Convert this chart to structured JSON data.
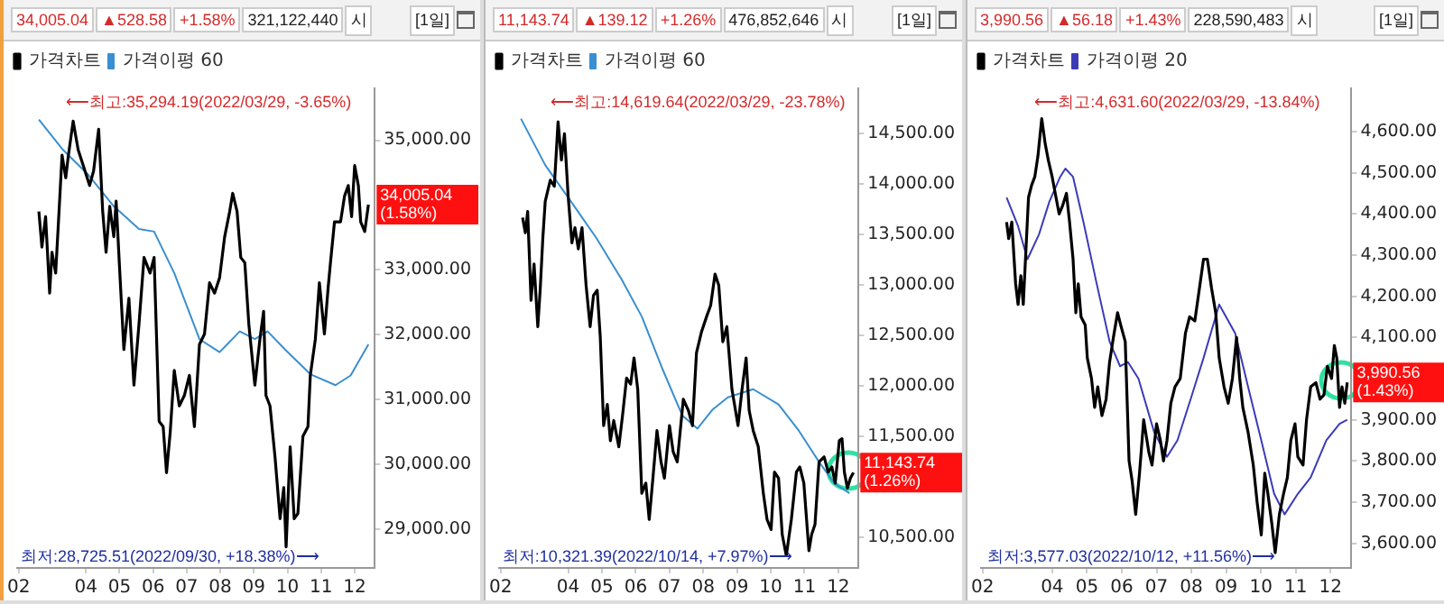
{
  "chart_data": [
    {
      "type": "line",
      "legend": "top left",
      "marker": "none",
      "grid": false,
      "annotations": [
        "34,005.04",
        "▲528.58",
        "+1.58%",
        "321,122,440",
        "시",
        "[1일]",
        {
          "text": "⟵최고:35,294.19(2022/03/29, -3.65%)",
          "x": 3.62,
          "y": 35294.19
        },
        {
          "text": "최저:28,725.51(2022/09/30, +18.38%)⟶",
          "x": 9.96,
          "y": 28725.51
        },
        {
          "text": "34,005.04\n(1.58%)",
          "x": 12.41,
          "y": 34005.04
        }
      ],
      "xlim": [
        1.95,
        12.6
      ],
      "xticks": [
        {
          "value": 2,
          "label": "02"
        },
        {
          "value": 4,
          "label": "04"
        },
        {
          "value": 5,
          "label": "05"
        },
        {
          "value": 6,
          "label": "06"
        },
        {
          "value": 7,
          "label": "07"
        },
        {
          "value": 8,
          "label": "08"
        },
        {
          "value": 9,
          "label": "09"
        },
        {
          "value": 10,
          "label": "10"
        },
        {
          "value": 11,
          "label": "11"
        },
        {
          "value": 12,
          "label": "12"
        }
      ],
      "ylim": [
        28400,
        35800
      ],
      "yticks": [
        {
          "value": 29000,
          "label": "29,000.00"
        },
        {
          "value": 30000,
          "label": "30,000.00"
        },
        {
          "value": 31000,
          "label": "31,000.00"
        },
        {
          "value": 32000,
          "label": "32,000.00"
        },
        {
          "value": 33000,
          "label": "33,000.00"
        },
        {
          "value": 35000,
          "label": "35,000.00"
        }
      ],
      "series": [
        {
          "name": "가격차트",
          "color": "#000000",
          "x": [
            2.6,
            2.69,
            2.8,
            2.92,
            2.99,
            3.1,
            3.2,
            3.29,
            3.4,
            3.47,
            3.62,
            3.77,
            3.92,
            4.11,
            4.23,
            4.38,
            4.5,
            4.6,
            4.71,
            4.83,
            4.9,
            5.01,
            5.13,
            5.28,
            5.43,
            5.58,
            5.73,
            5.91,
            6.03,
            6.18,
            6.3,
            6.4,
            6.51,
            6.63,
            6.78,
            6.93,
            7.08,
            7.23,
            7.38,
            7.53,
            7.68,
            7.83,
            7.98,
            8.13,
            8.28,
            8.37,
            8.5,
            8.61,
            8.73,
            8.85,
            9.03,
            9.18,
            9.29,
            9.36,
            9.48,
            9.63,
            9.78,
            9.89,
            9.96,
            10.08,
            10.2,
            10.31,
            10.46,
            10.61,
            10.68,
            10.83,
            10.95,
            11.1,
            11.21,
            11.28,
            11.4,
            11.58,
            11.7,
            11.81,
            11.91,
            12.0,
            12.11,
            12.18,
            12.3,
            12.41
          ],
          "values": [
            33900,
            33350,
            33820,
            32640,
            33270,
            32950,
            33900,
            34770,
            34420,
            34730,
            35294.19,
            34850,
            34610,
            34300,
            34530,
            35170,
            33900,
            33270,
            33980,
            33510,
            34060,
            32950,
            31770,
            32560,
            31220,
            32160,
            33190,
            32950,
            33190,
            30660,
            30580,
            29870,
            30500,
            31450,
            30900,
            31060,
            31370,
            30580,
            31850,
            32010,
            32800,
            32640,
            32880,
            33510,
            33900,
            34180,
            33900,
            33190,
            33110,
            32160,
            31220,
            31930,
            32360,
            31060,
            30900,
            30110,
            29160,
            29640,
            28725.51,
            30270,
            29160,
            29240,
            30430,
            30580,
            31370,
            31930,
            32800,
            32010,
            32720,
            33110,
            33740,
            33740,
            34140,
            34300,
            33820,
            34610,
            34300,
            33740,
            33590,
            34005.04
          ]
        },
        {
          "name": "가격이평 60",
          "color": "#3a8fd0",
          "x": [
            2.6,
            3.32,
            4.08,
            4.83,
            5.58,
            6.03,
            6.63,
            7.38,
            7.98,
            8.58,
            9.03,
            9.41,
            9.93,
            10.68,
            11.43,
            11.88,
            12.41
          ],
          "values": [
            35320,
            34850,
            34460,
            33980,
            33630,
            33590,
            32950,
            31930,
            31730,
            32050,
            31930,
            32050,
            31770,
            31390,
            31220,
            31370,
            31850
          ]
        }
      ]
    },
    {
      "type": "line",
      "legend": "top left",
      "marker": "none",
      "grid": false,
      "annotations": [
        "11,143.74",
        "▲139.12",
        "+1.26%",
        "476,852,646",
        "시",
        "[1일]",
        {
          "text": "⟵최고:14,619.64(2022/03/29, -23.78%)",
          "x": 3.7,
          "y": 14619.64
        },
        {
          "text": "최저:10,321.39(2022/10/14, +7.97%)⟶",
          "x": 10.46,
          "y": 10321.39
        },
        {
          "text": "11,143.74\n(1.26%)",
          "x": 12.45,
          "y": 11143.74
        }
      ],
      "xlim": [
        1.95,
        12.6
      ],
      "xticks": [
        {
          "value": 2,
          "label": "02"
        },
        {
          "value": 4,
          "label": "04"
        },
        {
          "value": 5,
          "label": "05"
        },
        {
          "value": 6,
          "label": "06"
        },
        {
          "value": 7,
          "label": "07"
        },
        {
          "value": 8,
          "label": "08"
        },
        {
          "value": 9,
          "label": "09"
        },
        {
          "value": 10,
          "label": "10"
        },
        {
          "value": 11,
          "label": "11"
        },
        {
          "value": 12,
          "label": "12"
        }
      ],
      "ylim": [
        10200,
        14950
      ],
      "yticks": [
        {
          "value": 10500,
          "label": "10,500.00"
        },
        {
          "value": 11500,
          "label": "11,500.00"
        },
        {
          "value": 12000,
          "label": "12,000.00"
        },
        {
          "value": 12500,
          "label": "12,500.00"
        },
        {
          "value": 13000,
          "label": "13,000.00"
        },
        {
          "value": 13500,
          "label": "13,500.00"
        },
        {
          "value": 14000,
          "label": "14,000.00"
        },
        {
          "value": 14500,
          "label": "14,500.00"
        }
      ],
      "series": [
        {
          "name": "가격차트",
          "color": "#000000",
          "x": [
            2.65,
            2.73,
            2.8,
            2.9,
            2.99,
            3.1,
            3.17,
            3.25,
            3.32,
            3.47,
            3.59,
            3.7,
            3.8,
            3.89,
            4.0,
            4.11,
            4.2,
            4.3,
            4.41,
            4.53,
            4.65,
            4.75,
            4.86,
            4.95,
            5.05,
            5.16,
            5.25,
            5.35,
            5.5,
            5.61,
            5.73,
            5.85,
            5.95,
            6.06,
            6.18,
            6.3,
            6.4,
            6.51,
            6.63,
            6.75,
            6.85,
            7.0,
            7.11,
            7.23,
            7.41,
            7.56,
            7.68,
            7.8,
            7.95,
            8.1,
            8.22,
            8.35,
            8.46,
            8.58,
            8.7,
            8.85,
            9.03,
            9.15,
            9.27,
            9.36,
            9.48,
            9.63,
            9.78,
            9.89,
            10.01,
            10.11,
            10.23,
            10.34,
            10.46,
            10.61,
            10.76,
            10.86,
            10.98,
            11.13,
            11.21,
            11.31,
            11.43,
            11.58,
            11.7,
            11.81,
            11.91,
            12.03,
            12.11,
            12.18,
            12.27,
            12.36,
            12.45
          ],
          "values": [
            13670,
            13520,
            13730,
            12850,
            13210,
            12590,
            12950,
            13470,
            13830,
            14040,
            13980,
            14619.64,
            14240,
            14500,
            13880,
            13420,
            13570,
            13360,
            13570,
            13000,
            12590,
            12900,
            12950,
            12490,
            11610,
            11820,
            11460,
            11660,
            11400,
            11710,
            12080,
            12020,
            12280,
            11970,
            10940,
            11040,
            10680,
            11090,
            11560,
            11250,
            11090,
            11610,
            11350,
            11250,
            11870,
            11760,
            11610,
            12330,
            12540,
            12690,
            12800,
            13110,
            13000,
            12440,
            12590,
            11970,
            11610,
            11970,
            12280,
            11760,
            11560,
            11400,
            10940,
            10680,
            10580,
            11150,
            11090,
            10530,
            10321.39,
            10680,
            11150,
            11200,
            11040,
            10370,
            10530,
            10630,
            11250,
            11300,
            11150,
            11200,
            11040,
            11460,
            11480,
            11150,
            10990,
            11090,
            11143.74
          ]
        },
        {
          "name": "가격이평 60",
          "color": "#3a8fd0",
          "x": [
            2.6,
            3.32,
            4.08,
            4.83,
            5.58,
            6.18,
            6.78,
            7.38,
            7.83,
            8.28,
            8.73,
            9.48,
            10.23,
            10.83,
            11.43,
            11.88,
            12.33
          ],
          "values": [
            14650,
            14190,
            13830,
            13470,
            13060,
            12690,
            12180,
            11710,
            11580,
            11770,
            11890,
            11970,
            11820,
            11560,
            11250,
            11040,
            10940
          ]
        }
      ]
    },
    {
      "type": "line",
      "legend": "top left",
      "marker": "none",
      "grid": false,
      "annotations": [
        "3,990.56",
        "▲56.18",
        "+1.43%",
        "228,590,483",
        "시",
        "[1일]",
        {
          "text": "⟵최고:4,631.60(2022/03/29, -13.84%)",
          "x": 3.7,
          "y": 4631.6
        },
        {
          "text": "최저:3,577.03(2022/10/12, +11.56%)⟶",
          "x": 10.41,
          "y": 3577.03
        },
        {
          "text": "3,990.56\n(1.43%)",
          "x": 12.48,
          "y": 3990.56
        }
      ],
      "xlim": [
        1.95,
        12.6
      ],
      "xticks": [
        {
          "value": 2,
          "label": "02"
        },
        {
          "value": 4,
          "label": "04"
        },
        {
          "value": 5,
          "label": "05"
        },
        {
          "value": 6,
          "label": "06"
        },
        {
          "value": 7,
          "label": "07"
        },
        {
          "value": 8,
          "label": "08"
        },
        {
          "value": 9,
          "label": "09"
        },
        {
          "value": 10,
          "label": "10"
        },
        {
          "value": 11,
          "label": "11"
        },
        {
          "value": 12,
          "label": "12"
        }
      ],
      "ylim": [
        3540,
        4705
      ],
      "yticks": [
        {
          "value": 3600,
          "label": "3,600.00"
        },
        {
          "value": 3700,
          "label": "3,700.00"
        },
        {
          "value": 3800,
          "label": "3,800.00"
        },
        {
          "value": 3900,
          "label": "3,900.00"
        },
        {
          "value": 4100,
          "label": "4,100.00"
        },
        {
          "value": 4200,
          "label": "4,200.00"
        },
        {
          "value": 4300,
          "label": "4,300.00"
        },
        {
          "value": 4400,
          "label": "4,400.00"
        },
        {
          "value": 4500,
          "label": "4,500.00"
        },
        {
          "value": 4600,
          "label": "4,600.00"
        }
      ],
      "series": [
        {
          "name": "가격차트",
          "color": "#000000",
          "x": [
            2.69,
            2.75,
            2.84,
            2.95,
            3.02,
            3.1,
            3.17,
            3.25,
            3.32,
            3.41,
            3.5,
            3.59,
            3.7,
            3.8,
            3.89,
            4.0,
            4.11,
            4.2,
            4.3,
            4.41,
            4.5,
            4.6,
            4.68,
            4.75,
            4.83,
            4.95,
            5.01,
            5.13,
            5.22,
            5.31,
            5.43,
            5.55,
            5.65,
            5.76,
            5.88,
            5.97,
            6.1,
            6.21,
            6.3,
            6.4,
            6.51,
            6.63,
            6.78,
            6.87,
            7.0,
            7.11,
            7.2,
            7.3,
            7.41,
            7.53,
            7.68,
            7.83,
            7.95,
            8.1,
            8.25,
            8.35,
            8.46,
            8.58,
            8.7,
            8.8,
            8.94,
            9.06,
            9.18,
            9.3,
            9.39,
            9.48,
            9.63,
            9.78,
            9.89,
            10.01,
            10.11,
            10.2,
            10.31,
            10.41,
            10.53,
            10.65,
            10.76,
            10.86,
            10.98,
            11.06,
            11.21,
            11.31,
            11.43,
            11.58,
            11.7,
            11.81,
            11.91,
            12.03,
            12.11,
            12.18,
            12.26,
            12.33,
            12.41,
            12.48
          ],
          "values": [
            4380,
            4340,
            4380,
            4230,
            4180,
            4250,
            4180,
            4320,
            4440,
            4470,
            4490,
            4540,
            4631.6,
            4570,
            4530,
            4490,
            4440,
            4400,
            4420,
            4450,
            4380,
            4290,
            4160,
            4230,
            4150,
            4130,
            4050,
            4000,
            3930,
            3980,
            3910,
            3950,
            4040,
            4100,
            4160,
            4130,
            4090,
            3800,
            3750,
            3670,
            3770,
            3900,
            3820,
            3790,
            3890,
            3850,
            3800,
            3850,
            3940,
            3980,
            4000,
            4110,
            4150,
            4140,
            4230,
            4290,
            4290,
            4220,
            4160,
            4050,
            3980,
            3940,
            4000,
            4100,
            4000,
            3930,
            3870,
            3790,
            3700,
            3620,
            3770,
            3720,
            3650,
            3577.03,
            3670,
            3720,
            3760,
            3850,
            3890,
            3810,
            3790,
            3900,
            3980,
            3990,
            3950,
            3960,
            4030,
            4000,
            4080,
            4050,
            3930,
            3980,
            3940,
            3990.56
          ]
        },
        {
          "name": "가격이평 20",
          "color": "#3b3bb8",
          "x": [
            2.69,
            3.02,
            3.29,
            3.62,
            3.92,
            4.23,
            4.38,
            4.6,
            4.9,
            5.28,
            5.65,
            5.95,
            6.18,
            6.48,
            6.93,
            7.3,
            7.6,
            7.98,
            8.35,
            8.8,
            9.26,
            9.63,
            10.01,
            10.38,
            10.68,
            11.06,
            11.43,
            11.88,
            12.26,
            12.48
          ],
          "values": [
            4440,
            4370,
            4290,
            4350,
            4430,
            4490,
            4510,
            4490,
            4380,
            4230,
            4090,
            4030,
            4040,
            4000,
            3870,
            3810,
            3850,
            3950,
            4050,
            4180,
            4110,
            3980,
            3850,
            3720,
            3670,
            3720,
            3760,
            3850,
            3890,
            3900
          ]
        }
      ]
    }
  ]
}
